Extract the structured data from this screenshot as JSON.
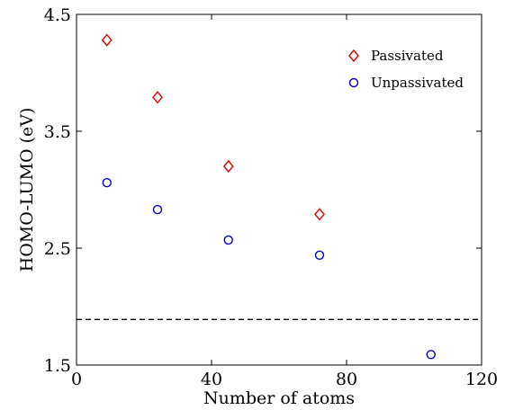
{
  "chart_data": {
    "type": "scatter",
    "title": "",
    "xlabel": "Number of atoms",
    "ylabel": "HOMO-LUMO (eV)",
    "xlim": [
      0,
      120
    ],
    "ylim": [
      1.5,
      4.5
    ],
    "xticks": [
      0,
      40,
      80,
      120
    ],
    "yticks": [
      1.5,
      2.5,
      3.5,
      4.5
    ],
    "xtick_labels": [
      "0",
      "40",
      "80",
      "120"
    ],
    "ytick_labels": [
      "1.5",
      "2.5",
      "3.5",
      "4.5"
    ],
    "grid": false,
    "legend_position": "top-right",
    "series": [
      {
        "name": "Passivated",
        "marker": "diamond",
        "color": "#e00000",
        "x": [
          9,
          24,
          45,
          72
        ],
        "y": [
          4.28,
          3.79,
          3.2,
          2.79
        ]
      },
      {
        "name": "Unpassivated",
        "marker": "circle",
        "color": "#0000cc",
        "x": [
          9,
          24,
          45,
          72,
          105
        ],
        "y": [
          3.06,
          2.83,
          2.57,
          2.44,
          1.59
        ]
      }
    ],
    "reference_lines": [
      {
        "orientation": "horizontal",
        "y": 1.89,
        "style": "dashed",
        "color": "#000000"
      }
    ]
  }
}
